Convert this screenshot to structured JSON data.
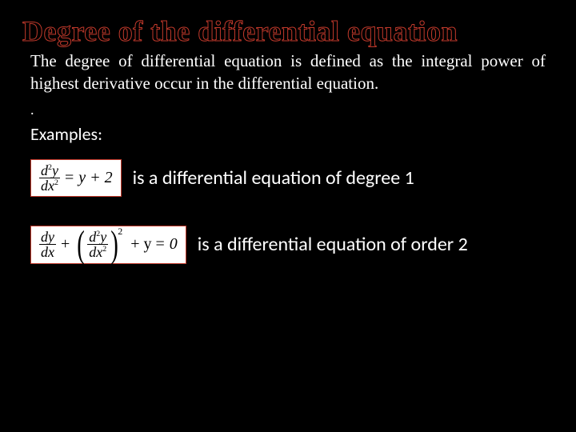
{
  "title": "Degree of the differential equation",
  "definition": "The degree of differential equation is defined as the integral power of highest derivative occur in the differential equation.",
  "dot": ".",
  "examples_label": "Examples:",
  "example1": {
    "text": "is a differential equation of degree 1"
  },
  "example2": {
    "text": "is a differential equation of order 2"
  },
  "colors": {
    "background": "#000000",
    "title_stroke": "#c0392b",
    "text": "#ffffff",
    "box_bg": "#ffffff",
    "box_border": "#c0392b"
  },
  "eq1": {
    "lhs_num_pre": "d",
    "lhs_num_sup": "2",
    "lhs_num_post": "y",
    "lhs_den_pre": "dx",
    "lhs_den_sup": "2",
    "eq_sign": "=",
    "rhs": "y + 2"
  },
  "eq2": {
    "t1_num": "dy",
    "t1_den": "dx",
    "plus1": "+",
    "t2_num_pre": "d",
    "t2_num_sup": "2",
    "t2_num_post": "y",
    "t2_den_pre": "dx",
    "t2_den_sup": "2",
    "outer_exp": "2",
    "plus2": "+ y =",
    "zero": "0"
  }
}
